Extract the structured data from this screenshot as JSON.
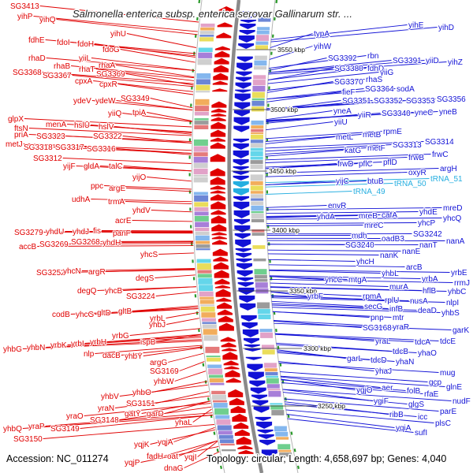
{
  "title": "Salmonella enterica subsp. enterica serovar Gallinarum str. ...",
  "footer": {
    "accession": "Accession: NC_011274",
    "summary": "Topology: circular; Length: 4,658,697 bp; Genes: 4,040"
  },
  "backbone_ticks": [
    "3550 kbp",
    "3500 kbp",
    "3450 kbp",
    "3400 kbp",
    "3350 kbp",
    "3300 kbp",
    "3250 kbp"
  ],
  "genes_left": [
    "SG3413",
    "yihP",
    "yihQ",
    "yihU",
    "fdhE",
    "fdoI",
    "fdoH",
    "fdoG",
    "rhaD",
    "yiiL",
    "rhaB",
    "rhaA",
    "rhaT",
    "SG3368",
    "SG3367",
    "SG3369",
    "cpxA",
    "cpxR",
    "ydeV",
    "ydeW",
    "SG3349",
    "yiiQ",
    "tpiA",
    "glpX",
    "menA",
    "hslU",
    "hslV",
    "ftsN",
    "priA",
    "SG3323",
    "SG3322",
    "metJ",
    "SG3318",
    "SG3317",
    "SG3316",
    "SG3312",
    "yijF",
    "gldA",
    "talC",
    "yijO",
    "ppc",
    "argE",
    "udhA",
    "trmA",
    "yhdV",
    "acrE",
    "SG3279",
    "yhdU",
    "yhdJ",
    "fis",
    "panF",
    "accB",
    "SG3269",
    "SG3268",
    "yhdH",
    "yhcS",
    "SG3252",
    "yhcN",
    "argR",
    "degS",
    "degQ",
    "yhcB",
    "SG3224",
    "codB",
    "yhcG",
    "gltD",
    "gltB",
    "yrbL",
    "yhbJ",
    "yhbG",
    "yhbN",
    "yrbK",
    "yrbI",
    "yrbH",
    "yrbG",
    "ispB",
    "nlp",
    "dacB",
    "yhbY",
    "argG",
    "SG3169",
    "yhbW",
    "yhbV",
    "yhbO",
    "yraN",
    "SG3151",
    "yraO",
    "gatY",
    "garD",
    "SG3148",
    "yhbQ",
    "yraP",
    "SG3149",
    "yhaL",
    "SG3150",
    "yqjK",
    "yqjA",
    "yqjP",
    "fadH",
    "oat",
    "yqjI",
    "dnaG"
  ],
  "genes_right": [
    "yihE",
    "yihD",
    "typA",
    "yihW",
    "SG3392",
    "rbn",
    "SG3391",
    "yiiD",
    "yihZ",
    "SG3380",
    "fdhD",
    "yiiG",
    "rhaS",
    "SG3370",
    "SG3364",
    "sodA",
    "fieF",
    "SG3351",
    "SG3352",
    "SG3353",
    "SG3356",
    "yneA",
    "yiiR",
    "SG3340",
    "yneC",
    "yneB",
    "yiiU",
    "rpmE",
    "metL",
    "metB",
    "SG3313",
    "SG3314",
    "katG",
    "metF",
    "frwC",
    "frwD",
    "pflC",
    "pflD",
    "frwB",
    "oxyR",
    "argH",
    "yijC",
    "btuB",
    "envR",
    "yhdA",
    "mreB",
    "cafA",
    "yhdE",
    "mreD",
    "yhcQ",
    "yhcP",
    "mreC",
    "SG3242",
    "mdh",
    "oadB3",
    "SG3240",
    "nanT",
    "nanA",
    "nanK",
    "nanE",
    "yhcH",
    "arcB",
    "yrbE",
    "yhbL",
    "yhcC",
    "mtgA",
    "yrbA",
    "rrmJ",
    "murA",
    "yhbC",
    "hflB",
    "yrbF",
    "rpmA",
    "nlpI",
    "rplU",
    "nusA",
    "secG",
    "infB",
    "deaD",
    "yhbS",
    "pnp",
    "mtr",
    "SG3168",
    "yraR",
    "garK",
    "yraL",
    "tdcA",
    "tdcE",
    "tdcB",
    "yhaO",
    "garL",
    "tdcD",
    "yhaN",
    "yhaJ",
    "mug",
    "gcp",
    "glnE",
    "ygjO",
    "aer",
    "folB",
    "rfaE",
    "ygiF",
    "glgS",
    "nudF",
    "ribB",
    "icc",
    "parE",
    "yqiA",
    "plsC",
    "sufI"
  ],
  "rna_genes": [
    "tRNA_50",
    "tRNA_51",
    "tRNA_49"
  ],
  "colors": {
    "genes_left": "#e00000",
    "genes_right": "#1212d6",
    "rna_genes": "#25aee0",
    "backbone": "#8a8a8a",
    "guide": "#b4b4b4",
    "divider_marks": "#2a9a2a",
    "feature_palette": [
      "#64d6ea",
      "#a77fd9",
      "#eadd5a",
      "#84b7ee",
      "#9b9b9b",
      "#e2a2c8",
      "#6fcf8e",
      "#f2ad5c",
      "#6c86d6",
      "#cfcfcf",
      "#e57a7a"
    ]
  }
}
